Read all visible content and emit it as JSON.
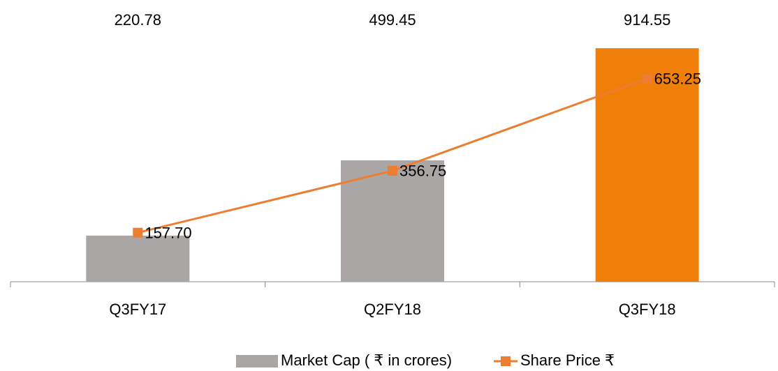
{
  "chart_data": {
    "type": "bar_line",
    "categories": [
      "Q3FY17",
      "Q2FY18",
      "Q3FY18"
    ],
    "series": [
      {
        "name": "Market Cap ( ₹ in crores)",
        "type": "bar",
        "colors": [
          "#aaa6a5",
          "#aaa6a5",
          "#f07f09"
        ],
        "color": "#aaa6a5",
        "values": [
          220.78,
          499.45,
          914.55
        ]
      },
      {
        "name": "Share Price ₹",
        "type": "line",
        "axis": "y2",
        "color": "#ed7d31",
        "values": [
          157.7,
          356.75,
          653.25
        ],
        "value_labels": [
          "157.70",
          "356.75",
          "653.25"
        ]
      }
    ],
    "ylim": [
      50,
      1000
    ],
    "y2lim": [
      0,
      825
    ],
    "legend": "bottom"
  }
}
